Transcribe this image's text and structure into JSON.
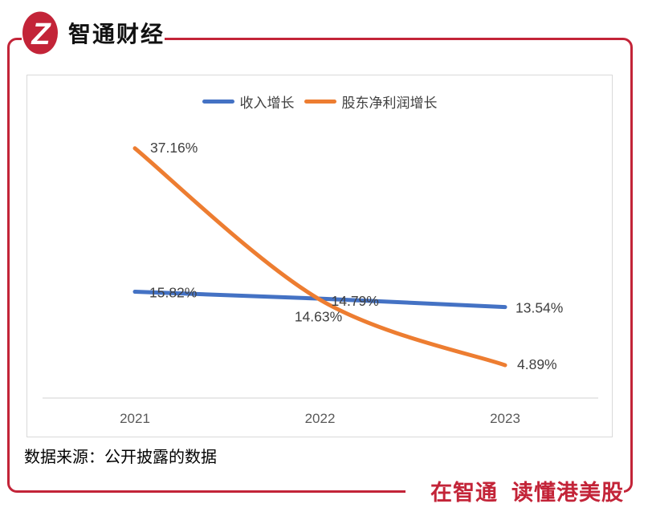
{
  "header": {
    "brand": "智通财经",
    "logo_monogram": "Z"
  },
  "chart_data": {
    "type": "line",
    "title": "",
    "categories": [
      "2021",
      "2022",
      "2023"
    ],
    "series": [
      {
        "name": "收入增长",
        "color": "#4472C4",
        "smooth": false,
        "values": [
          15.82,
          14.79,
          13.54
        ],
        "labels": [
          "15.82%",
          "14.79%",
          "13.54%"
        ]
      },
      {
        "name": "股东净利润增长",
        "color": "#ED7D31",
        "smooth": true,
        "values": [
          37.16,
          14.63,
          4.89
        ],
        "labels": [
          "37.16%",
          "14.63%",
          "4.89%"
        ]
      }
    ],
    "ylim": [
      0,
      48
    ],
    "grid": false,
    "legend_position": "top-center",
    "axis_color": "#D9D9D9",
    "label_color": "#404040",
    "tick_color": "#595959"
  },
  "footer": {
    "source": "数据来源：公开披露的数据",
    "slogan": "在智通  读懂港美股"
  },
  "colors": {
    "brand_red": "#C32438"
  }
}
